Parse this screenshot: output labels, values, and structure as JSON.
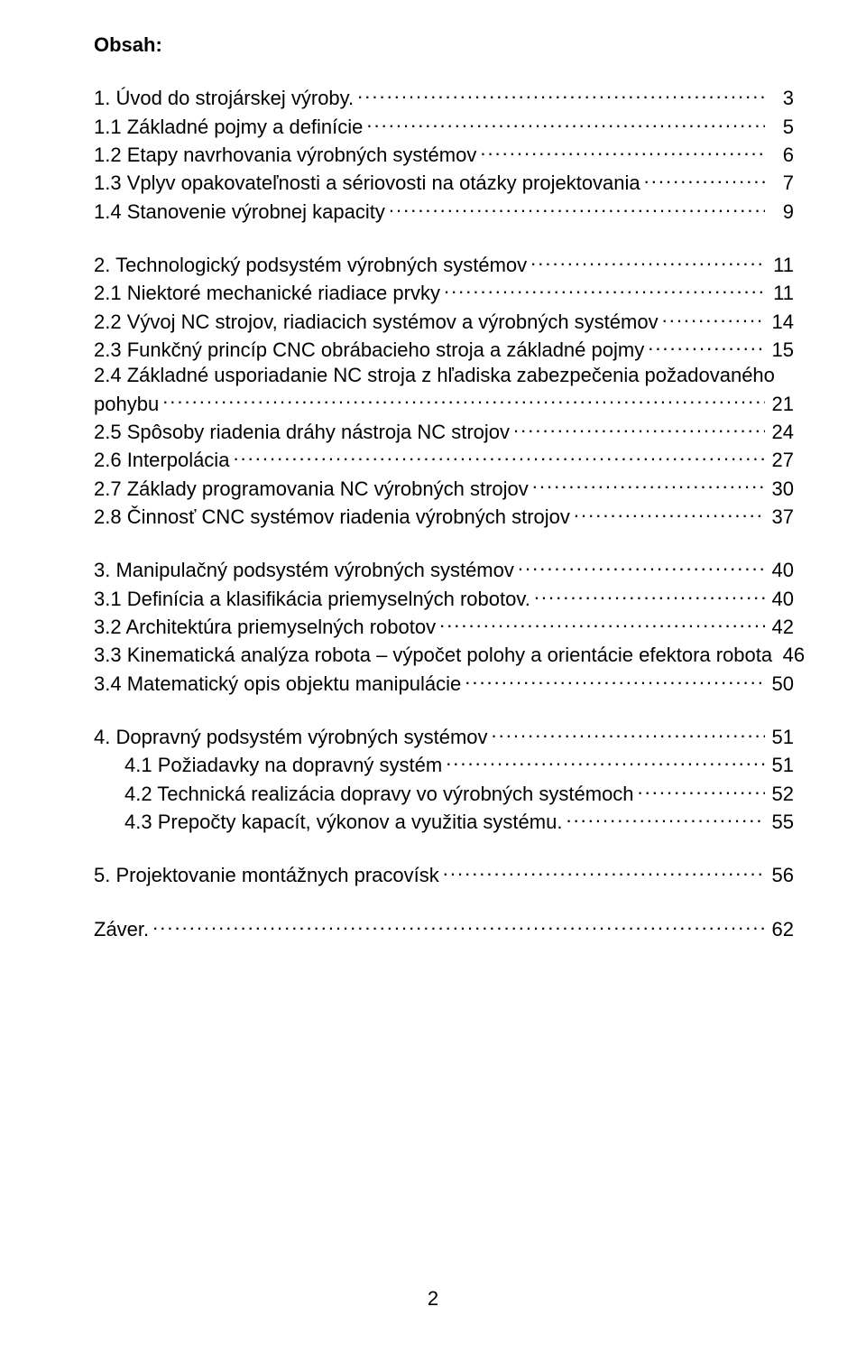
{
  "title": "Obsah:",
  "page_number": "2",
  "font": {
    "family": "Arial",
    "size_pt": 16,
    "color": "#000000",
    "bold_title": true
  },
  "background_color": "#ffffff",
  "groups": [
    {
      "items": [
        {
          "label": "1. Úvod do strojárskej výroby.",
          "page": "3",
          "indent": 0
        },
        {
          "label": "1.1 Základné pojmy a definície",
          "page": "5",
          "indent": 0
        },
        {
          "label": "1.2 Etapy navrhovania výrobných systémov",
          "page": "6",
          "indent": 0
        },
        {
          "label": "1.3 Vplyv opakovateľnosti a sériovosti na otázky projektovania",
          "page": "7",
          "indent": 0
        },
        {
          "label": "1.4 Stanovenie výrobnej kapacity",
          "page": "9",
          "indent": 0
        }
      ]
    },
    {
      "items": [
        {
          "label": "2. Technologický podsystém výrobných systémov",
          "page": "11",
          "indent": 0
        },
        {
          "label": "2.1 Niektoré mechanické riadiace prvky",
          "page": "11",
          "indent": 0
        },
        {
          "label": "2.2 Vývoj NC strojov, riadiacich systémov a výrobných systémov",
          "page": "14",
          "indent": 0
        },
        {
          "label": "2.3 Funkčný princíp CNC obrábacieho stroja a základné pojmy",
          "page": "15",
          "indent": 0
        },
        {
          "label_lines": [
            "2.4 Základné usporiadanie NC stroja z hľadiska zabezpečenia požadovaného",
            "pohybu"
          ],
          "page": "21",
          "indent": 0
        },
        {
          "label": "2.5 Spôsoby riadenia dráhy nástroja NC strojov",
          "page": "24",
          "indent": 0
        },
        {
          "label": "2.6 Interpolácia",
          "page": "27",
          "indent": 0
        },
        {
          "label": "2.7 Základy programovania NC výrobných strojov",
          "page": "30",
          "indent": 0
        },
        {
          "label": "2.8 Činnosť CNC systémov riadenia výrobných strojov",
          "page": "37",
          "indent": 0
        }
      ]
    },
    {
      "items": [
        {
          "label": "3. Manipulačný podsystém výrobných systémov",
          "page": "40",
          "indent": 0
        },
        {
          "label": "3.1 Definícia a klasifikácia priemyselných robotov.",
          "page": "40",
          "indent": 0
        },
        {
          "label": "3.2 Architektúra priemyselných robotov",
          "page": "42",
          "indent": 0
        },
        {
          "label": "3.3 Kinematická analýza robota – výpočet polohy a orientácie efektora robota",
          "page": "46",
          "indent": 0
        },
        {
          "label": "3.4 Matematický opis objektu manipulácie",
          "page": "50",
          "indent": 0
        }
      ]
    },
    {
      "items": [
        {
          "label": "4. Dopravný podsystém výrobných systémov",
          "page": "51",
          "indent": 0
        },
        {
          "label": "4.1 Požiadavky na dopravný systém",
          "page": "51",
          "indent": 1
        },
        {
          "label": "4.2 Technická realizácia dopravy vo výrobných systémoch",
          "page": "52",
          "indent": 1
        },
        {
          "label": "4.3 Prepočty kapacít, výkonov a využitia systému.",
          "page": "55",
          "indent": 1
        }
      ]
    },
    {
      "items": [
        {
          "label": "5. Projektovanie montážnych pracovísk",
          "page": "56",
          "indent": 0
        }
      ]
    },
    {
      "items": [
        {
          "label": "Záver.",
          "page": "62",
          "indent": 0
        }
      ]
    }
  ]
}
